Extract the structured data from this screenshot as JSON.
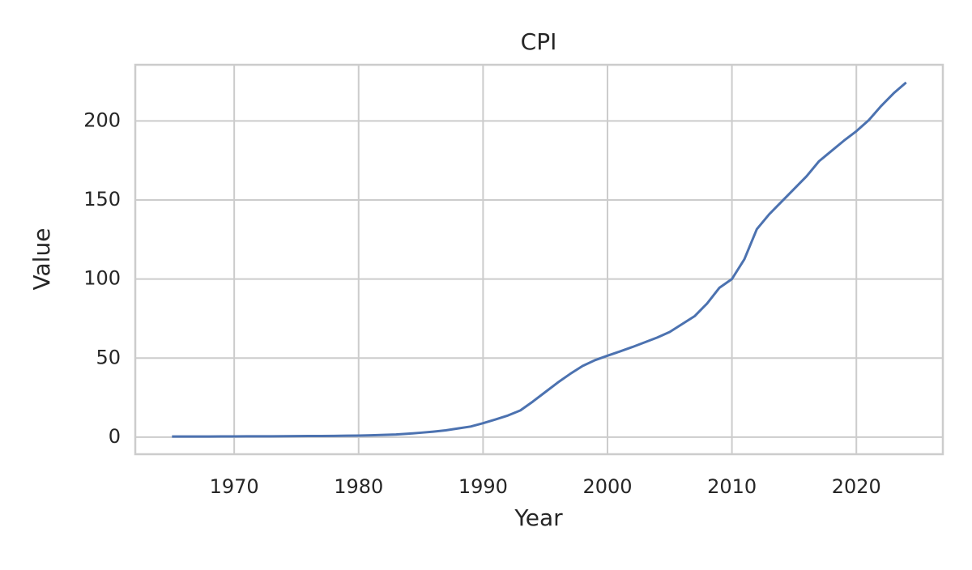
{
  "chart_data": {
    "type": "line",
    "title": "CPI",
    "x_label": "Year",
    "y_label": "Value",
    "x": [
      1965,
      1966,
      1967,
      1968,
      1969,
      1970,
      1971,
      1972,
      1973,
      1974,
      1975,
      1976,
      1977,
      1978,
      1979,
      1980,
      1981,
      1982,
      1983,
      1984,
      1985,
      1986,
      1987,
      1988,
      1989,
      1990,
      1991,
      1992,
      1993,
      1994,
      1995,
      1996,
      1997,
      1998,
      1999,
      2000,
      2001,
      2002,
      2003,
      2004,
      2005,
      2006,
      2007,
      2008,
      2009,
      2010,
      2011,
      2012,
      2013,
      2014,
      2015,
      2016,
      2017,
      2018,
      2019,
      2020,
      2021,
      2022,
      2023,
      2024
    ],
    "series": [
      {
        "name": "CPI",
        "color": "#4c72b0",
        "values": [
          0.4,
          0.4,
          0.4,
          0.4,
          0.45,
          0.45,
          0.5,
          0.5,
          0.55,
          0.6,
          0.65,
          0.7,
          0.75,
          0.8,
          0.9,
          1.0,
          1.2,
          1.4,
          1.7,
          2.2,
          2.8,
          3.5,
          4.3,
          5.5,
          6.7,
          8.8,
          11.2,
          13.7,
          16.9,
          22.5,
          28.5,
          34.5,
          40,
          45,
          48.7,
          51.5,
          54.2,
          57,
          60,
          63,
          66.5,
          71.5,
          76.5,
          84.5,
          94.5,
          100,
          112.5,
          131.5,
          141,
          149,
          157,
          165,
          174.5,
          181,
          187.5,
          193.5,
          200.5,
          209.5,
          217.5,
          224.3
        ]
      }
    ],
    "xlim": [
      1962.05,
      2026.95
    ],
    "xticks": [
      1970,
      1980,
      1990,
      2000,
      2010,
      2020
    ],
    "ylim": [
      -10.8,
      235.5
    ],
    "yticks": [
      0,
      50,
      100,
      150,
      200
    ],
    "grid": true
  }
}
